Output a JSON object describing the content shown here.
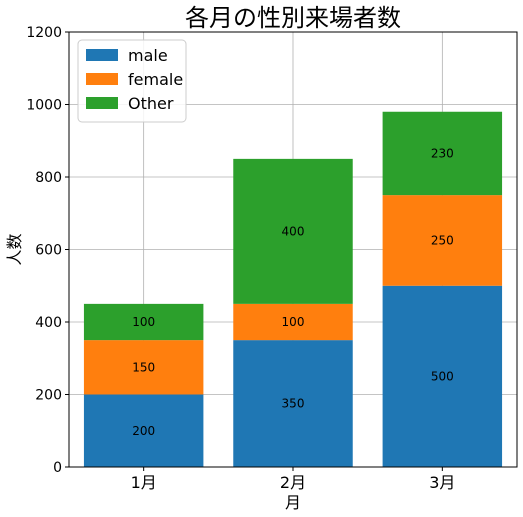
{
  "chart_data": {
    "type": "bar",
    "stacked": true,
    "title": "各月の性別来場者数",
    "xlabel": "月",
    "ylabel": "人数",
    "categories": [
      "1月",
      "2月",
      "3月"
    ],
    "series": [
      {
        "name": "male",
        "values": [
          200,
          350,
          500
        ],
        "color": "#1f77b4"
      },
      {
        "name": "female",
        "values": [
          150,
          100,
          250
        ],
        "color": "#ff7f0e"
      },
      {
        "name": "Other",
        "values": [
          100,
          400,
          230
        ],
        "color": "#2ca02c"
      }
    ],
    "ylim": [
      0,
      1200
    ],
    "yticks": [
      0,
      200,
      400,
      600,
      800,
      1000,
      1200
    ],
    "grid": true,
    "legend": "top-left"
  }
}
